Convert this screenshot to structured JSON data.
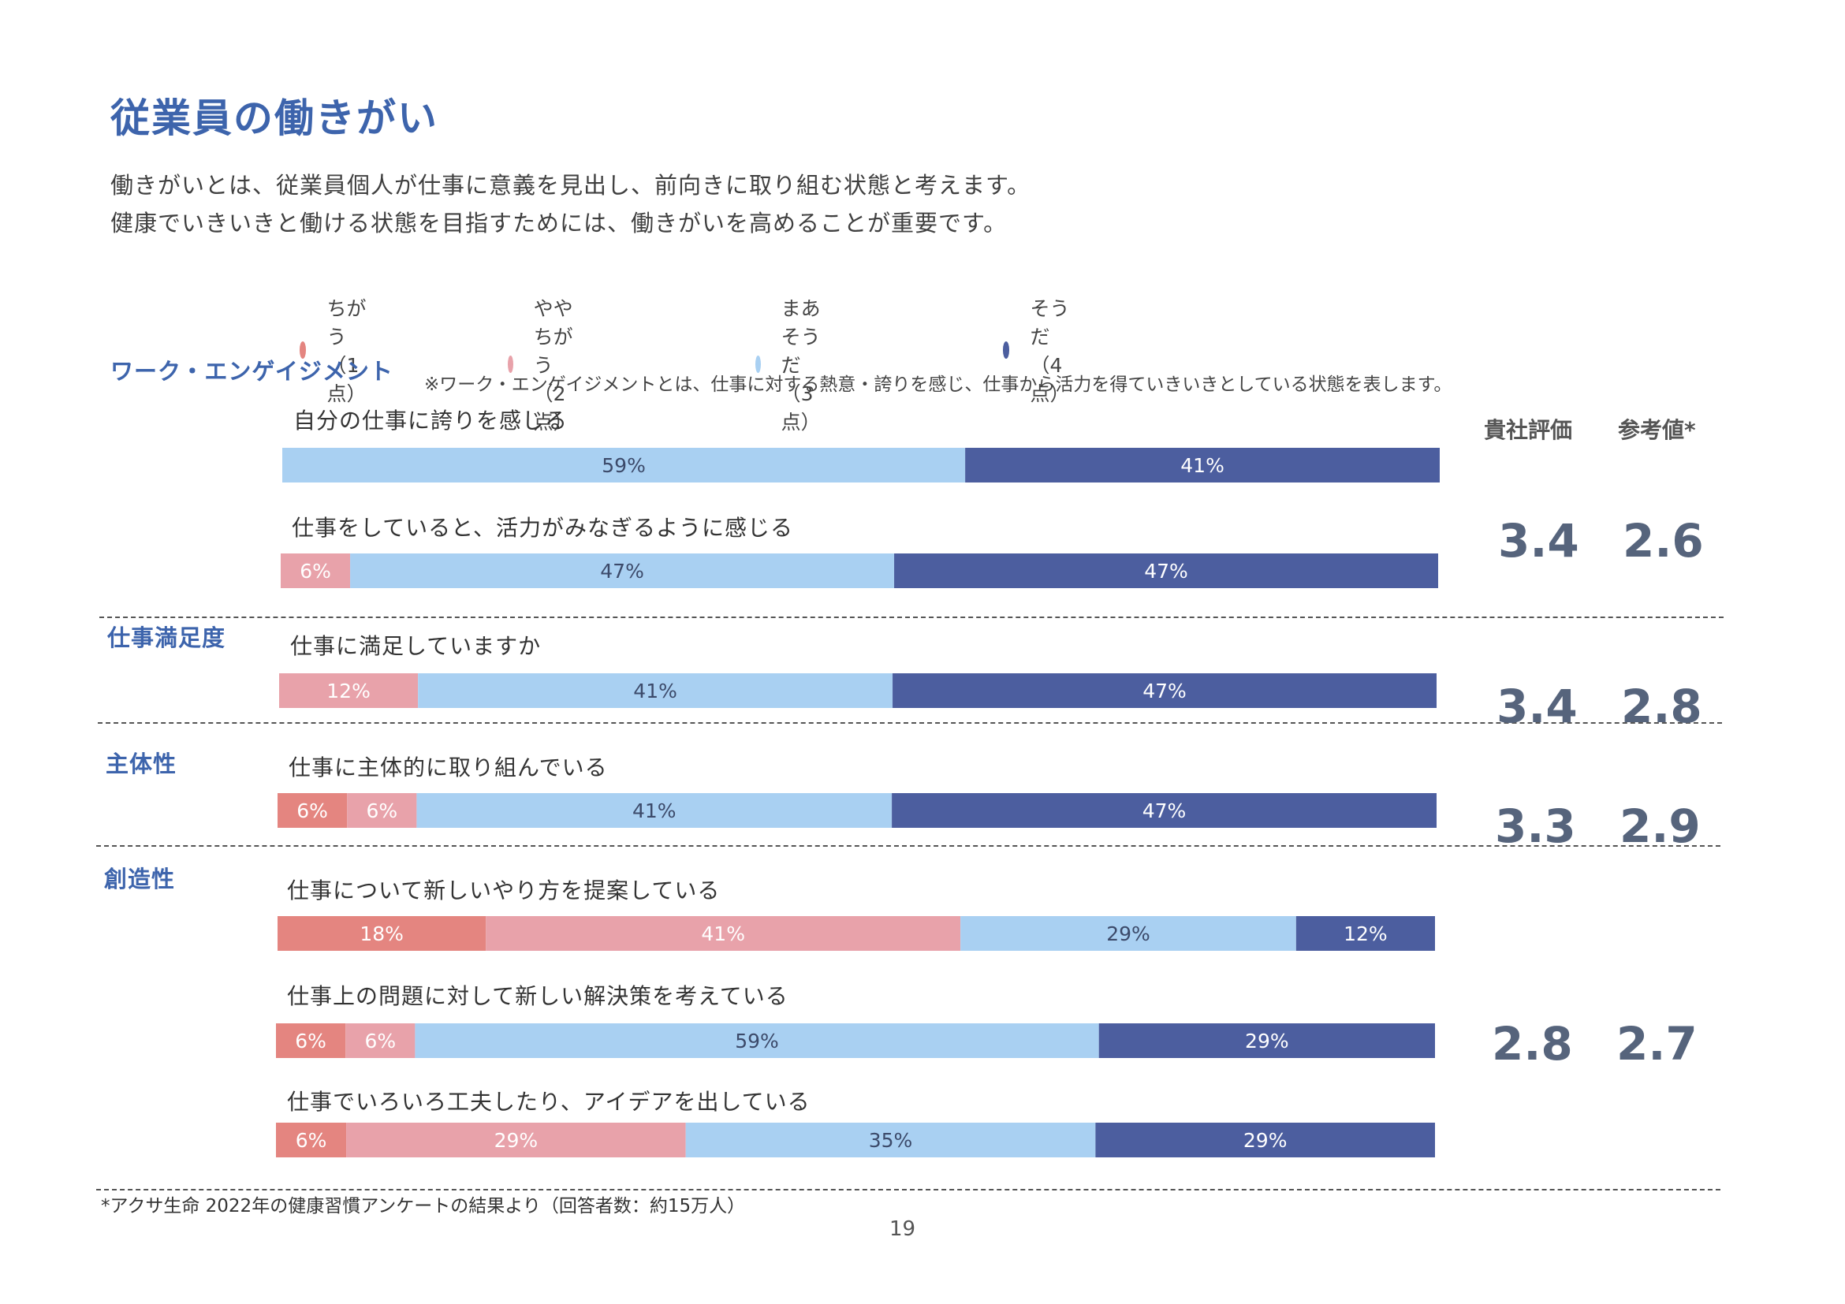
{
  "page": {
    "title": "従業員の働きがい",
    "intro_line1": "働きがいとは、従業員個人が仕事に意義を見出し、前向きに取り組む状態と考えます。",
    "intro_line2": "健康でいきいきと働ける状態を目指すためには、働きがいを高めることが重要です。",
    "footnote": "*アクサ生命 2022年の健康習慣アンケートの結果より（回答者数：約15万人）",
    "page_number": "19"
  },
  "legend": [
    {
      "label": "ちがう（1点）",
      "color": "#e48580"
    },
    {
      "label": "ややちがう（2点）",
      "color": "#e8a2aa"
    },
    {
      "label": "まあそうだ（3点）",
      "color": "#a9d0f2"
    },
    {
      "label": "そうだ（4点）",
      "color": "#4c5e9f"
    }
  ],
  "columns": {
    "own": "貴社評価",
    "ref": "参考値*"
  },
  "sections": [
    {
      "title": "ワーク・エンゲイジメント",
      "note": "※ワーク・エンゲイジメントとは、仕事に対する熱意・誇りを感じ、仕事から活力を得ていきいきとしている状態を表します。",
      "own_score": "3.4",
      "ref_score": "2.6"
    },
    {
      "title": "仕事満足度",
      "own_score": "3.4",
      "ref_score": "2.8"
    },
    {
      "title": "主体性",
      "own_score": "3.3",
      "ref_score": "2.9"
    },
    {
      "title": "創造性",
      "own_score": "2.8",
      "ref_score": "2.7"
    }
  ],
  "questions": [
    {
      "label": "自分の仕事に誇りを感じる"
    },
    {
      "label": "仕事をしていると、活力がみなぎるように感じる"
    },
    {
      "label": "仕事に満足していますか"
    },
    {
      "label": "仕事に主体的に取り組んでいる"
    },
    {
      "label": "仕事について新しいやり方を提案している"
    },
    {
      "label": "仕事上の問題に対して新しい解決策を考えている"
    },
    {
      "label": "仕事でいろいろ工夫したり、アイデアを出している"
    }
  ],
  "chart_data": {
    "type": "bar",
    "orientation": "horizontal-stacked-100",
    "series_names": [
      "ちがう（1点）",
      "ややちがう（2点）",
      "まあそうだ（3点）",
      "そうだ（4点）"
    ],
    "series_colors": [
      "#e48580",
      "#e8a2aa",
      "#a9d0f2",
      "#4c5e9f"
    ],
    "categories": [
      "自分の仕事に誇りを感じる",
      "仕事をしていると、活力がみなぎるように感じる",
      "仕事に満足していますか",
      "仕事に主体的に取り組んでいる",
      "仕事について新しいやり方を提案している",
      "仕事上の問題に対して新しい解決策を考えている",
      "仕事でいろいろ工夫したり、アイデアを出している"
    ],
    "values": [
      [
        0,
        0,
        59,
        41
      ],
      [
        0,
        6,
        47,
        47
      ],
      [
        0,
        12,
        41,
        47
      ],
      [
        6,
        6,
        41,
        47
      ],
      [
        18,
        41,
        29,
        12
      ],
      [
        6,
        6,
        59,
        29
      ],
      [
        6,
        29,
        35,
        29
      ]
    ],
    "labels": [
      [
        "",
        "",
        "59%",
        "41%"
      ],
      [
        "",
        "6%",
        "47%",
        "47%"
      ],
      [
        "",
        "12%",
        "41%",
        "47%"
      ],
      [
        "6%",
        "6%",
        "41%",
        "47%"
      ],
      [
        "18%",
        "41%",
        "29%",
        "12%"
      ],
      [
        "6%",
        "6%",
        "59%",
        "29%"
      ],
      [
        "6%",
        "29%",
        "35%",
        "29%"
      ]
    ],
    "unit": "%"
  }
}
